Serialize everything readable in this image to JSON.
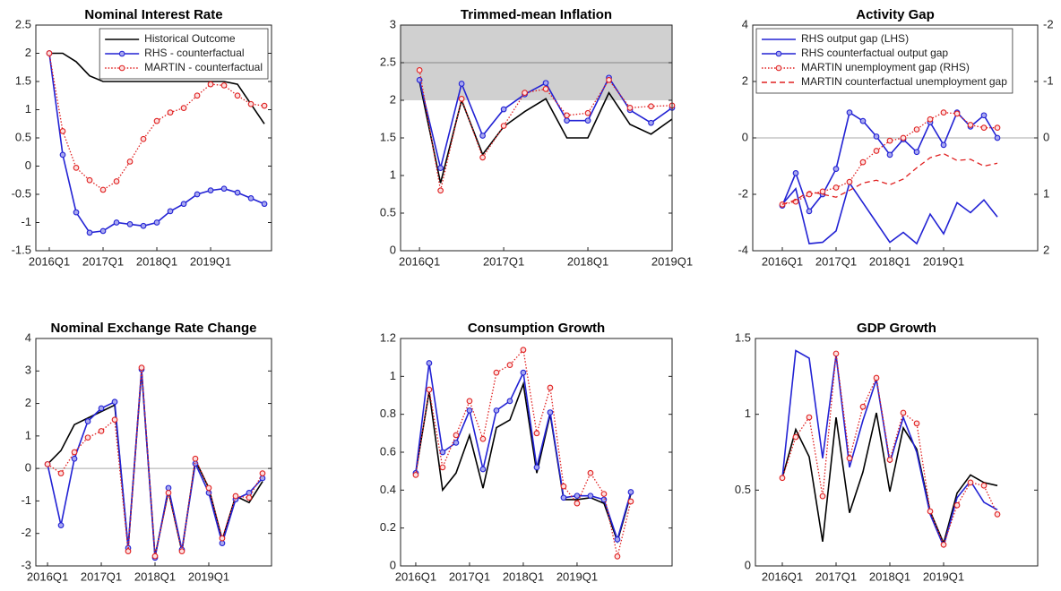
{
  "chart_data": [
    {
      "type": "line",
      "title": "Nominal Interest Rate",
      "categories": [
        "2016Q1",
        null,
        null,
        null,
        "2017Q1",
        null,
        null,
        null,
        "2018Q1",
        null,
        null,
        null,
        "2019Q1",
        null,
        null,
        null,
        null
      ],
      "ylim": [
        -1.5,
        2.5
      ],
      "yticks": [
        -1.5,
        -1,
        -0.5,
        0,
        0.5,
        1,
        1.5,
        2,
        2.5
      ],
      "legend": "upper right",
      "series": [
        {
          "name": "Historical Outcome",
          "color": "#000000",
          "line": "solid",
          "values": [
            2,
            2,
            1.85,
            1.6,
            1.5,
            1.5,
            1.5,
            1.5,
            1.5,
            1.5,
            1.5,
            1.5,
            1.5,
            1.5,
            1.45,
            1.1,
            0.75
          ]
        },
        {
          "name": "RHS - counterfactual",
          "color": "#2222d4",
          "line": "solid",
          "marker": "circle",
          "values": [
            2,
            0.2,
            -0.82,
            -1.18,
            -1.15,
            -1.0,
            -1.03,
            -1.06,
            -1.0,
            -0.8,
            -0.67,
            -0.5,
            -0.43,
            -0.4,
            -0.47,
            -0.57,
            -0.67
          ]
        },
        {
          "name": "MARTIN - counterfactual",
          "color": "#e02020",
          "line": "dotted",
          "marker": "circle",
          "values": [
            2,
            0.62,
            -0.03,
            -0.25,
            -0.42,
            -0.27,
            0.08,
            0.48,
            0.8,
            0.95,
            1.03,
            1.25,
            1.45,
            1.43,
            1.25,
            1.1,
            1.07
          ]
        }
      ]
    },
    {
      "type": "line",
      "title": "Trimmed-mean Inflation",
      "categories": [
        "2016Q1",
        null,
        null,
        null,
        "2017Q1",
        null,
        null,
        null,
        "2018Q1",
        null,
        null,
        null,
        "2019Q1"
      ],
      "ylim": [
        0,
        3
      ],
      "yticks": [
        0,
        0.5,
        1,
        1.5,
        2,
        2.5,
        3
      ],
      "shaded_range": [
        2,
        3
      ],
      "reference_line": 2.5,
      "series": [
        {
          "color": "#000000",
          "line": "solid",
          "values": [
            2.25,
            0.9,
            2.0,
            1.28,
            1.65,
            1.85,
            2.02,
            1.5,
            1.5,
            2.1,
            1.68,
            1.55,
            1.75
          ]
        },
        {
          "color": "#2222d4",
          "line": "solid",
          "marker": "circle",
          "values": [
            2.27,
            1.1,
            2.22,
            1.53,
            1.88,
            2.08,
            2.23,
            1.73,
            1.73,
            2.3,
            1.87,
            1.7,
            1.9
          ]
        },
        {
          "color": "#e02020",
          "line": "dotted",
          "marker": "circle",
          "values": [
            2.4,
            0.8,
            2.02,
            1.24,
            1.66,
            2.1,
            2.15,
            1.8,
            1.83,
            2.27,
            1.9,
            1.92,
            1.93
          ]
        }
      ]
    },
    {
      "type": "line",
      "title": "Activity Gap",
      "categories": [
        "2016Q1",
        null,
        null,
        null,
        "2017Q1",
        null,
        null,
        null,
        "2018Q1",
        null,
        null,
        null,
        "2019Q1",
        null,
        null,
        null,
        null
      ],
      "ylim": [
        -4,
        4
      ],
      "yticks": [
        -4,
        -2,
        0,
        2,
        4
      ],
      "y2lim": [
        2,
        -2
      ],
      "y2ticks": [
        -2,
        -1,
        0,
        1,
        2
      ],
      "reference_line": 0,
      "legend": "upper left",
      "series": [
        {
          "name": "RHS output gap (LHS)",
          "color": "#2222d4",
          "line": "solid",
          "values": [
            -2.35,
            -1.8,
            -3.75,
            -3.7,
            -3.3,
            -1.6,
            -2.3,
            -3.0,
            -3.7,
            -3.35,
            -3.75,
            -2.7,
            -3.4,
            -2.3,
            -2.65,
            -2.2,
            -2.8
          ]
        },
        {
          "name": "RHS counterfactual output gap",
          "color": "#2222d4",
          "line": "solid",
          "marker": "circle",
          "values": [
            -2.4,
            -1.25,
            -2.6,
            -2.0,
            -1.1,
            0.9,
            0.6,
            0.05,
            -0.6,
            -0.05,
            -0.5,
            0.55,
            -0.25,
            0.9,
            0.4,
            0.8,
            0.0
          ]
        },
        {
          "name": "MARTIN unemployment gap (RHS)",
          "color": "#e02020",
          "line": "dotted",
          "marker": "circle",
          "axis": "y2",
          "values": [
            1.18,
            1.13,
            1.0,
            0.95,
            0.88,
            0.78,
            0.43,
            0.23,
            0.05,
            0.0,
            -0.15,
            -0.33,
            -0.45,
            -0.43,
            -0.23,
            -0.18,
            -0.18
          ]
        },
        {
          "name": "MARTIN counterfactual unemployment gap",
          "color": "#e02020",
          "line": "dashed",
          "axis": "y2",
          "values": [
            1.18,
            1.1,
            0.95,
            1.0,
            1.05,
            0.93,
            0.8,
            0.75,
            0.83,
            0.73,
            0.53,
            0.35,
            0.28,
            0.4,
            0.38,
            0.5,
            0.45
          ]
        }
      ]
    },
    {
      "type": "line",
      "title": "Nominal Exchange Rate Change",
      "categories": [
        "2016Q1",
        null,
        null,
        null,
        "2017Q1",
        null,
        null,
        null,
        "2018Q1",
        null,
        null,
        null,
        "2019Q1",
        null,
        null,
        null,
        null
      ],
      "ylim": [
        -3,
        4
      ],
      "yticks": [
        -3,
        -2,
        -1,
        0,
        1,
        2,
        3,
        4
      ],
      "reference_line": 0,
      "series": [
        {
          "color": "#000000",
          "line": "solid",
          "values": [
            0.13,
            0.55,
            1.35,
            1.55,
            1.75,
            1.95,
            -2.45,
            3.0,
            -2.7,
            -0.7,
            -2.55,
            0.25,
            -0.6,
            -2.2,
            -0.85,
            -1.05,
            -0.4
          ]
        },
        {
          "color": "#2222d4",
          "line": "solid",
          "marker": "circle",
          "values": [
            0.13,
            -1.75,
            0.3,
            1.45,
            1.85,
            2.05,
            -2.45,
            3.05,
            -2.75,
            -0.6,
            -2.5,
            0.15,
            -0.75,
            -2.3,
            -0.95,
            -0.75,
            -0.3
          ]
        },
        {
          "color": "#e02020",
          "line": "dotted",
          "marker": "circle",
          "values": [
            0.13,
            -0.15,
            0.5,
            0.95,
            1.15,
            1.5,
            -2.55,
            3.1,
            -2.7,
            -0.75,
            -2.55,
            0.3,
            -0.6,
            -2.15,
            -0.85,
            -0.9,
            -0.15
          ]
        }
      ]
    },
    {
      "type": "line",
      "title": "Consumption Growth",
      "categories": [
        "2016Q1",
        null,
        null,
        null,
        "2017Q1",
        null,
        null,
        null,
        "2018Q1",
        null,
        null,
        null,
        "2019Q1",
        null,
        null,
        null,
        null
      ],
      "ylim": [
        0,
        1.2
      ],
      "yticks": [
        0,
        0.2,
        0.4,
        0.6,
        0.8,
        1,
        1.2
      ],
      "series": [
        {
          "color": "#000000",
          "line": "solid",
          "values": [
            0.49,
            0.92,
            0.4,
            0.49,
            0.69,
            0.41,
            0.73,
            0.77,
            0.96,
            0.49,
            0.8,
            0.35,
            0.35,
            0.36,
            0.33,
            0.13,
            0.38
          ]
        },
        {
          "color": "#2222d4",
          "line": "solid",
          "marker": "circle",
          "values": [
            0.49,
            1.07,
            0.6,
            0.65,
            0.82,
            0.51,
            0.82,
            0.87,
            1.02,
            0.52,
            0.81,
            0.36,
            0.37,
            0.37,
            0.35,
            0.14,
            0.39
          ]
        },
        {
          "color": "#e02020",
          "line": "dotted",
          "marker": "circle",
          "values": [
            0.48,
            0.93,
            0.52,
            0.69,
            0.87,
            0.67,
            1.02,
            1.06,
            1.14,
            0.7,
            0.94,
            0.42,
            0.33,
            0.49,
            0.38,
            0.05,
            0.34
          ]
        }
      ]
    },
    {
      "type": "line",
      "title": "GDP Growth",
      "categories": [
        "2016Q1",
        null,
        null,
        null,
        "2017Q1",
        null,
        null,
        null,
        "2018Q1",
        null,
        null,
        null,
        "2019Q1",
        null,
        null,
        null,
        null
      ],
      "ylim": [
        0,
        1.5
      ],
      "yticks": [
        0,
        0.5,
        1,
        1.5
      ],
      "series": [
        {
          "color": "#000000",
          "line": "solid",
          "values": [
            0.58,
            0.9,
            0.72,
            0.16,
            0.98,
            0.35,
            0.62,
            1.01,
            0.49,
            0.91,
            0.77,
            0.36,
            0.15,
            0.48,
            0.6,
            0.55,
            0.53
          ]
        },
        {
          "color": "#2222d4",
          "line": "solid",
          "values": [
            0.58,
            1.42,
            1.37,
            0.71,
            1.39,
            0.65,
            0.96,
            1.23,
            0.68,
            0.98,
            0.75,
            0.34,
            0.13,
            0.45,
            0.56,
            0.42,
            0.37
          ]
        },
        {
          "color": "#e02020",
          "line": "dotted",
          "marker": "circle",
          "values": [
            0.58,
            0.85,
            0.98,
            0.46,
            1.4,
            0.71,
            1.05,
            1.24,
            0.7,
            1.01,
            0.94,
            0.36,
            0.14,
            0.4,
            0.55,
            0.53,
            0.34
          ]
        }
      ]
    }
  ]
}
